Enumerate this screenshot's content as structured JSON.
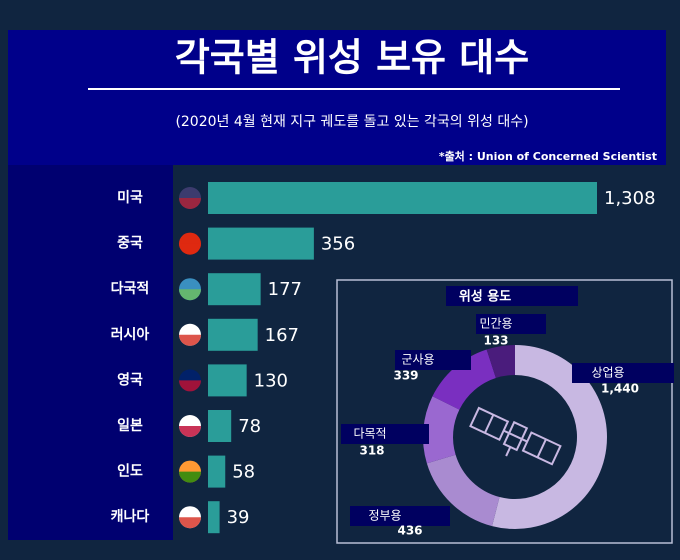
{
  "chart_data": [
    {
      "type": "bar",
      "orientation": "horizontal",
      "title": "각국별 위성 보유 대수",
      "subtitle": "(2020년 4월 현재 지구 궤도를 돌고 있는 각국의 위성 대수)",
      "source": "*출처 :  Union of Concerned Scientist",
      "categories": [
        "미국",
        "중국",
        "다국적",
        "러시아",
        "영국",
        "일본",
        "인도",
        "캐나다"
      ],
      "values": [
        1308,
        356,
        177,
        167,
        130,
        78,
        58,
        39
      ],
      "value_labels": [
        "1,308",
        "356",
        "177",
        "167",
        "130",
        "78",
        "58",
        "39"
      ],
      "color": "#2a9d99"
    },
    {
      "type": "pie",
      "donut": true,
      "title": "위성 용도",
      "categories": [
        "상업용",
        "정부용",
        "다목적",
        "군사용",
        "민간용"
      ],
      "values": [
        1440,
        436,
        318,
        339,
        133
      ],
      "value_labels": [
        "1,440",
        "436",
        "318",
        "339",
        "133"
      ],
      "colors": [
        "#c8b8e2",
        "#a98bd0",
        "#9a68d0",
        "#7a2fc0",
        "#4a1c7c"
      ]
    }
  ]
}
